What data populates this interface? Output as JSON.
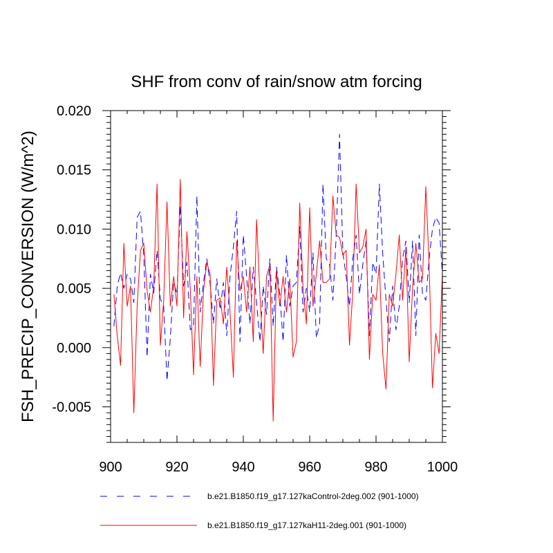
{
  "chart_data": {
    "type": "line",
    "title": "SHF from conv of rain/snow atm forcing",
    "xlabel": "",
    "ylabel": "FSH_PRECIP_CONVERSION  (W/m^2)",
    "xlim": [
      900,
      1000
    ],
    "ylim": [
      -0.008,
      0.02
    ],
    "xticks": [
      900,
      920,
      940,
      960,
      980,
      1000
    ],
    "xtick_labels": [
      "900",
      "920",
      "940",
      "960",
      "980",
      "1000"
    ],
    "yticks": [
      -0.005,
      0.0,
      0.005,
      0.01,
      0.015,
      0.02
    ],
    "ytick_labels": [
      "-0.005",
      "0.000",
      "0.005",
      "0.010",
      "0.015",
      "0.020"
    ],
    "grid": false,
    "legend_position": "bottom",
    "series": [
      {
        "name": "b.e21.B1850.f19_g17.127kaControl-2deg.002 (901-1000)",
        "color": "#0000ff",
        "style": "dashed",
        "x": [
          901,
          902,
          903,
          904,
          905,
          906,
          907,
          908,
          909,
          910,
          911,
          912,
          913,
          914,
          915,
          916,
          917,
          918,
          919,
          920,
          921,
          922,
          923,
          924,
          925,
          926,
          927,
          928,
          929,
          930,
          931,
          932,
          933,
          934,
          935,
          936,
          937,
          938,
          939,
          940,
          941,
          942,
          943,
          944,
          945,
          946,
          947,
          948,
          949,
          950,
          951,
          952,
          953,
          954,
          955,
          956,
          957,
          958,
          959,
          960,
          961,
          962,
          963,
          964,
          965,
          966,
          967,
          968,
          969,
          970,
          971,
          972,
          973,
          974,
          975,
          976,
          977,
          978,
          979,
          980,
          981,
          982,
          983,
          984,
          985,
          986,
          987,
          988,
          989,
          990,
          991,
          992,
          993,
          994,
          995,
          996,
          997,
          998,
          999,
          1000
        ],
        "values": [
          0.0018,
          0.0052,
          0.0063,
          0.005,
          0.0062,
          0.0058,
          0.0038,
          0.011,
          0.0115,
          0.0078,
          -0.0008,
          0.0062,
          0.0046,
          0.0082,
          0.0041,
          0.0035,
          -0.0028,
          0.0008,
          0.0055,
          0.0045,
          0.012,
          0.0052,
          0.0072,
          0.0015,
          0.0018,
          0.0128,
          0.003,
          0.0055,
          0.0075,
          0.0054,
          0.002,
          0.0058,
          0.0032,
          0.0055,
          0.001,
          0.006,
          0.0085,
          0.0115,
          0.0005,
          0.0095,
          0.006,
          0.002,
          0.0068,
          0.0038,
          0.0005,
          0.0052,
          0.0028,
          0.0075,
          0.0018,
          0.0068,
          0.0045,
          0.0005,
          0.0078,
          0.0035,
          0.0052,
          0.0055,
          0.0102,
          0.003,
          0.005,
          0.003,
          0.008,
          0.0008,
          0.002,
          0.0138,
          0.0075,
          0.007,
          0.004,
          0.0095,
          0.018,
          0.008,
          0.006,
          0.0035,
          0.0075,
          0.0095,
          0.0045,
          0.007,
          0.009,
          0.001,
          0.0072,
          0.0062,
          0.0138,
          0.008,
          0.004,
          0.0005,
          0.0052,
          0.0015,
          0.0035,
          0.0075,
          0.009,
          0.0038,
          0.009,
          0.001,
          0.0095,
          0.0045,
          0.004,
          0.0075,
          0.01,
          0.011,
          0.0105,
          0.0062
        ]
      },
      {
        "name": "b.e21.B1850.f19_g17.127kaH11-2deg.001 (901-1000)",
        "color": "#ff0000",
        "style": "solid",
        "x": [
          901,
          902,
          903,
          904,
          905,
          906,
          907,
          908,
          909,
          910,
          911,
          912,
          913,
          914,
          915,
          916,
          917,
          918,
          919,
          920,
          921,
          922,
          923,
          924,
          925,
          926,
          927,
          928,
          929,
          930,
          931,
          932,
          933,
          934,
          935,
          936,
          937,
          938,
          939,
          940,
          941,
          942,
          943,
          944,
          945,
          946,
          947,
          948,
          949,
          950,
          951,
          952,
          953,
          954,
          955,
          956,
          957,
          958,
          959,
          960,
          961,
          962,
          963,
          964,
          965,
          966,
          967,
          968,
          969,
          970,
          971,
          972,
          973,
          974,
          975,
          976,
          977,
          978,
          979,
          980,
          981,
          982,
          983,
          984,
          985,
          986,
          987,
          988,
          989,
          990,
          991,
          992,
          993,
          994,
          995,
          996,
          997,
          998,
          999,
          1000
        ],
        "values": [
          0.0045,
          0.001,
          -0.0015,
          0.0088,
          0.0035,
          0.0052,
          -0.0055,
          0.0035,
          0.0082,
          0.0088,
          0.0048,
          0.003,
          0.0052,
          0.0138,
          0.0002,
          0.004,
          0.0123,
          0.0035,
          0.006,
          0.0035,
          0.0142,
          0.0025,
          0.0098,
          0.005,
          -0.0023,
          0.006,
          -0.0016,
          0.0048,
          0.0072,
          0.0062,
          -0.0032,
          0.004,
          0.0042,
          0.002,
          0.0068,
          0.003,
          -0.0025,
          0.009,
          0.0048,
          0.006,
          0.003,
          0.0068,
          0.0005,
          0.0108,
          0.0045,
          -0.0005,
          0.006,
          0.007,
          -0.0062,
          0.0065,
          0.0035,
          0.006,
          0.003,
          0.0058,
          -0.0008,
          0.0005,
          0.0122,
          0.005,
          0.002,
          0.0118,
          0.0035,
          0.0062,
          0.009,
          0.0055,
          0.0055,
          0.0058,
          0.0128,
          0.0095,
          0.0093,
          0.0078,
          0.0082,
          0.0002,
          0.0048,
          0.0138,
          0.008,
          0.0085,
          0.01,
          -0.001,
          0.0045,
          0.004,
          0.007,
          -0.0005,
          -0.0035,
          0.0045,
          0.0035,
          0.0062,
          0.0095,
          0.004,
          0.0085,
          -0.0012,
          0.005,
          0.0088,
          0.0055,
          0.0058,
          0.0136,
          0.007,
          -0.0034,
          0.0012,
          -0.0005,
          0.0062
        ]
      }
    ]
  }
}
